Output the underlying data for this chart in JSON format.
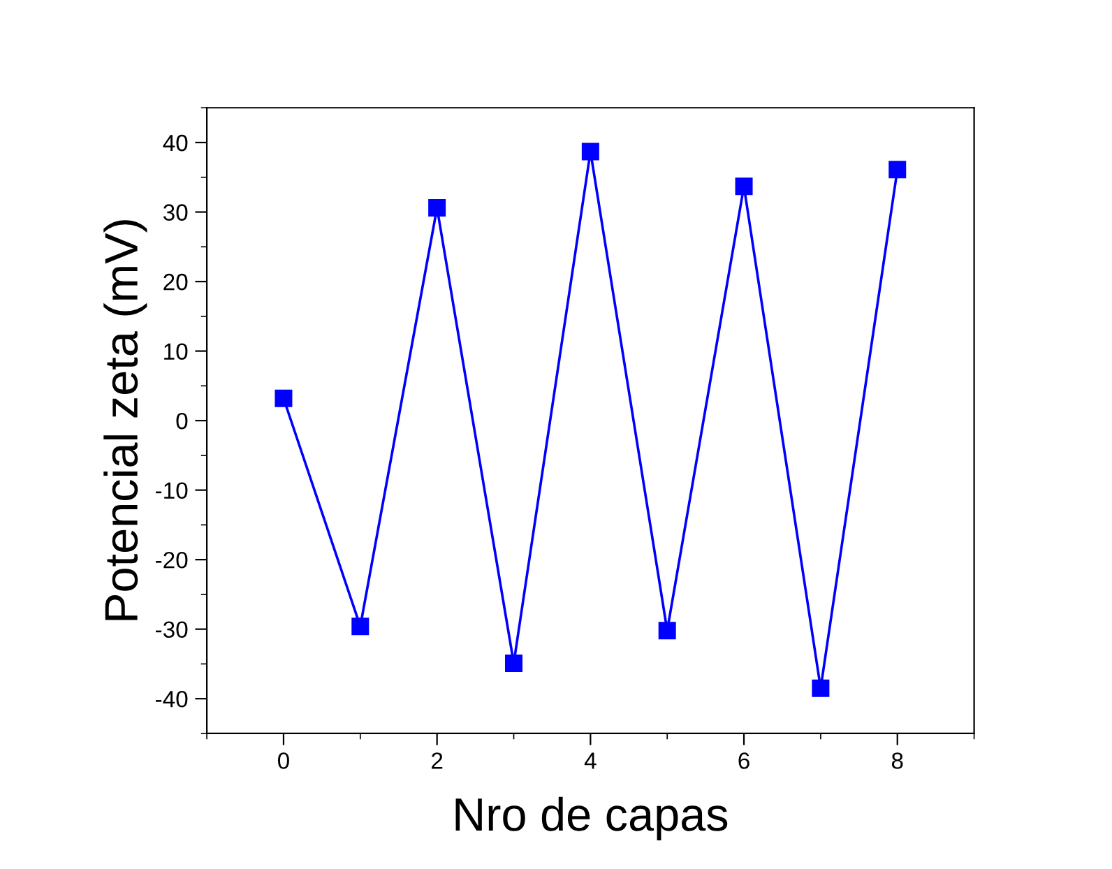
{
  "chart_data": {
    "type": "line",
    "xlabel": "Nro de capas",
    "ylabel": "Potencial zeta (mV)",
    "x": [
      0,
      1,
      2,
      3,
      4,
      5,
      6,
      7,
      8
    ],
    "series": [
      {
        "color": "#0000ff",
        "values": [
          3.2,
          -29.6,
          30.6,
          -34.9,
          38.7,
          -30.2,
          33.7,
          -38.5,
          36.1
        ]
      }
    ],
    "marker": "square",
    "line_style": "solid",
    "grid": false,
    "legend": false,
    "xlim": [
      -1,
      9
    ],
    "xticks": [
      0,
      2,
      4,
      6,
      8
    ],
    "ylim": [
      -45,
      45
    ],
    "yticks": [
      -40,
      -30,
      -20,
      -10,
      0,
      10,
      20,
      30,
      40
    ]
  }
}
